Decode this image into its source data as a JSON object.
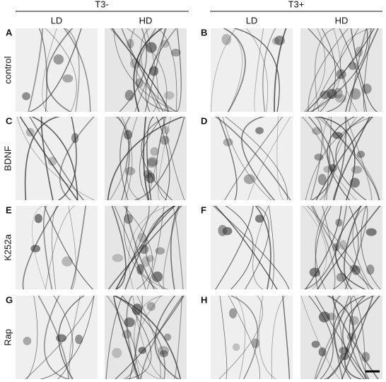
{
  "header": {
    "groups": [
      "T3-",
      "T3+"
    ],
    "columns": [
      "LD",
      "HD",
      "LD",
      "HD"
    ]
  },
  "rows": [
    {
      "label": "control",
      "panels": [
        "A",
        "B"
      ]
    },
    {
      "label": "BDNF",
      "panels": [
        "C",
        "D"
      ]
    },
    {
      "label": "K252a",
      "panels": [
        "E",
        "F"
      ]
    },
    {
      "label": "Rap",
      "panels": [
        "G",
        "H"
      ]
    }
  ]
}
